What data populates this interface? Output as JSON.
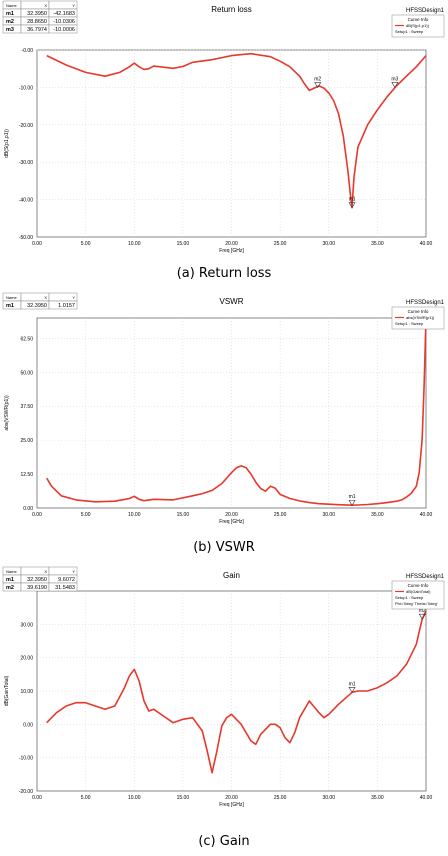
{
  "captions": [
    "(a) Return loss",
    "(b) VSWR",
    "(c) Gain"
  ],
  "chart_data": [
    {
      "type": "line",
      "title": "Return loss",
      "design_label": "HFSSDesign1",
      "xlabel": "Freq [GHz]",
      "ylabel": "dB(S(p1,p1))",
      "xlim": [
        0,
        40
      ],
      "ylim": [
        -50,
        0
      ],
      "x_ticks": [
        "0.00",
        "5.00",
        "10.00",
        "15.00",
        "20.00",
        "25.00",
        "30.00",
        "35.00",
        "40.00"
      ],
      "y_ticks": [
        "-50.00",
        "-40.00",
        "-30.00",
        "-20.00",
        "-10.00",
        "-0.00"
      ],
      "legend": {
        "title": "Curve Info",
        "entries": [
          "dB(S(p1,p1))",
          "Setup1 : Sweep"
        ]
      },
      "marker_table": {
        "headers": [
          "Name",
          "X",
          "Y"
        ],
        "rows": [
          [
            "m1",
            "32.3950",
            "-42.1683"
          ],
          [
            "m2",
            "28.8650",
            "-10.0306"
          ],
          [
            "m3",
            "36.7974",
            "-10.0006"
          ]
        ]
      },
      "markers": [
        {
          "name": "m1",
          "x": 32.395,
          "y": -42.1683
        },
        {
          "name": "m2",
          "x": 28.865,
          "y": -10.0306
        },
        {
          "name": "m3",
          "x": 36.7974,
          "y": -10.0006
        }
      ],
      "series": [
        {
          "color": "#e8372c",
          "x": [
            1,
            3,
            5,
            7,
            8.5,
            9.5,
            10,
            10.5,
            11,
            11.5,
            12,
            13,
            14,
            15,
            16,
            18,
            20,
            22,
            24,
            25,
            26,
            27,
            27.5,
            28,
            28.5,
            29,
            29.5,
            30,
            30.5,
            31,
            31.5,
            32,
            32.2,
            32.395,
            32.6,
            33,
            34,
            35,
            36,
            37,
            38,
            39,
            40
          ],
          "y": [
            -1.5,
            -4,
            -6,
            -7,
            -6,
            -4.5,
            -3.5,
            -4.5,
            -5.2,
            -5,
            -4.3,
            -4.6,
            -4.9,
            -4.4,
            -3.3,
            -2.6,
            -1.5,
            -1,
            -1.8,
            -3,
            -4.5,
            -7,
            -9,
            -10.8,
            -10.2,
            -9.6,
            -10.2,
            -11.5,
            -13.5,
            -17,
            -23,
            -33,
            -38,
            -42.17,
            -34,
            -26,
            -20,
            -16,
            -12.5,
            -9.5,
            -7,
            -4.5,
            -1.5
          ]
        }
      ]
    },
    {
      "type": "line",
      "title": "VSWR",
      "design_label": "HFSSDesign1",
      "xlabel": "Freq [GHz]",
      "ylabel": "abs(VSWR(p1))",
      "xlim": [
        0,
        40
      ],
      "ylim": [
        0,
        70
      ],
      "x_ticks": [
        "0.00",
        "5.00",
        "10.00",
        "15.00",
        "20.00",
        "25.00",
        "30.00",
        "35.00",
        "40.00"
      ],
      "y_ticks": [
        "0.00",
        "12.50",
        "25.00",
        "37.50",
        "50.00",
        "62.50"
      ],
      "legend": {
        "title": "Curve Info",
        "entries": [
          "abs(VSWR(p1))",
          "Setup1 : Sweep"
        ]
      },
      "marker_table": {
        "headers": [
          "Name",
          "X",
          "Y"
        ],
        "rows": [
          [
            "m1",
            "32.3950",
            "1.0157"
          ]
        ]
      },
      "markers": [
        {
          "name": "m1",
          "x": 32.395,
          "y": 1.0157
        }
      ],
      "series": [
        {
          "color": "#e8372c",
          "x": [
            1,
            1.5,
            2.5,
            4,
            6,
            8,
            9.5,
            10,
            10.5,
            11,
            12,
            13,
            14,
            16,
            17,
            18,
            19,
            20,
            20.5,
            21,
            21.5,
            22,
            22.5,
            23,
            23.5,
            24,
            24.5,
            25,
            26,
            27,
            28,
            29,
            30,
            31,
            32.4,
            33,
            34,
            35,
            36,
            37,
            37.5,
            38,
            38.5,
            39,
            39.3,
            39.6,
            39.8,
            40
          ],
          "y": [
            11,
            8,
            4.5,
            3,
            2.3,
            2.5,
            3.5,
            4.3,
            3.2,
            2.7,
            3.2,
            3.1,
            3,
            4.5,
            5.3,
            6.5,
            9,
            13,
            14.8,
            15.5,
            14.8,
            12.5,
            9.5,
            7.2,
            6.2,
            8,
            7.3,
            5,
            3.5,
            2.6,
            2,
            1.6,
            1.4,
            1.2,
            1.02,
            1.1,
            1.3,
            1.6,
            2,
            2.5,
            3,
            4,
            5.5,
            8,
            13,
            25,
            45,
            70
          ]
        }
      ]
    },
    {
      "type": "line",
      "title": "Gain",
      "design_label": "HFSSDesign1",
      "xlabel": "Freq [GHz]",
      "ylabel": "dB(GainTotal)",
      "xlim": [
        0,
        40
      ],
      "ylim": [
        -20,
        40
      ],
      "x_ticks": [
        "0.00",
        "5.00",
        "10.00",
        "15.00",
        "20.00",
        "25.00",
        "30.00",
        "35.00",
        "40.00"
      ],
      "y_ticks": [
        "-20.00",
        "-10.00",
        "0.00",
        "10.00",
        "20.00",
        "30.00"
      ],
      "legend": {
        "title": "Curve Info",
        "entries": [
          "dB(GainTotal)",
          "Setup1 : Sweep",
          "Phi='0deg' Theta='0deg'"
        ]
      },
      "marker_table": {
        "headers": [
          "Name",
          "X",
          "Y"
        ],
        "rows": [
          [
            "m1",
            "32.3950",
            "9.6072"
          ],
          [
            "m2",
            "39.6190",
            "31.5483"
          ]
        ]
      },
      "markers": [
        {
          "name": "m1",
          "x": 32.395,
          "y": 9.6072
        },
        {
          "name": "m2",
          "x": 39.619,
          "y": 31.5483
        }
      ],
      "series": [
        {
          "color": "#e8372c",
          "x": [
            1,
            2,
            3,
            4,
            5,
            6,
            7,
            8,
            9,
            9.5,
            10,
            10.5,
            11,
            11.5,
            12,
            13,
            14,
            15,
            16,
            17,
            17.5,
            18,
            18.5,
            19,
            19.5,
            20,
            21,
            22,
            22.5,
            23,
            24,
            24.5,
            25,
            25.5,
            26,
            26.5,
            27,
            28,
            29,
            29.5,
            30,
            31,
            32.4,
            33,
            34,
            35,
            36,
            37,
            38,
            39,
            39.6,
            40
          ],
          "y": [
            0.5,
            3.5,
            5.5,
            6.5,
            6.5,
            5.5,
            4.5,
            5.5,
            11,
            14.5,
            16.5,
            13,
            7,
            4,
            4.5,
            2.5,
            0.5,
            1.5,
            2,
            -2,
            -8,
            -14.5,
            -8,
            -0.5,
            2,
            3,
            0,
            -5,
            -6,
            -3,
            0,
            0,
            -1,
            -4,
            -5.5,
            -2.5,
            2,
            7,
            3.5,
            2,
            3,
            6,
            9.6,
            10,
            10,
            11,
            12.5,
            14.5,
            18,
            24,
            31.5,
            34
          ]
        }
      ]
    }
  ]
}
